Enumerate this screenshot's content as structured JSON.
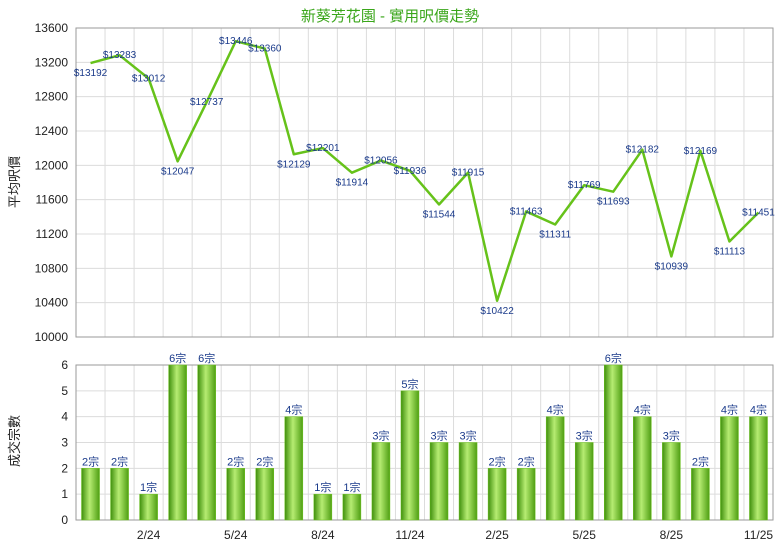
{
  "chart_data": [
    {
      "type": "line",
      "title": "新葵芳花園 - 實用呎價走勢",
      "ylabel": "平均呎價",
      "ylim": [
        10000,
        13600
      ],
      "yticks": [
        10000,
        10400,
        10800,
        11200,
        11600,
        12000,
        12400,
        12800,
        13200,
        13600
      ],
      "values": [
        13192,
        13283,
        13012,
        12047,
        12737,
        13446,
        13360,
        12129,
        12201,
        11914,
        12056,
        11936,
        11544,
        11915,
        10422,
        11463,
        11311,
        11769,
        11693,
        12182,
        10939,
        12169,
        11113,
        11451
      ],
      "labels": [
        "$13192",
        "$13283",
        "$13012",
        "$12047",
        "$12737",
        "$13446",
        "$13360",
        "$12129",
        "$12201",
        "$11914",
        "$12056",
        "$11936",
        "$11544",
        "$11915",
        "$10422",
        "$11463",
        "$11311",
        "$11769",
        "$11693",
        "$12182",
        "$10939",
        "$12169",
        "$11113",
        "$11451"
      ],
      "line_color": "#66c21a",
      "grid": true
    },
    {
      "type": "bar",
      "ylabel": "成交宗數",
      "ylim": [
        0,
        6
      ],
      "yticks": [
        0,
        1,
        2,
        3,
        4,
        5,
        6
      ],
      "values": [
        2,
        2,
        1,
        6,
        6,
        2,
        2,
        4,
        1,
        1,
        3,
        5,
        3,
        3,
        2,
        2,
        4,
        3,
        6,
        4,
        3,
        2,
        4,
        4
      ],
      "labels": [
        "2宗",
        "2宗",
        "1宗",
        "6宗",
        "6宗",
        "2宗",
        "2宗",
        "4宗",
        "1宗",
        "1宗",
        "3宗",
        "5宗",
        "3宗",
        "3宗",
        "2宗",
        "2宗",
        "4宗",
        "3宗",
        "6宗",
        "4宗",
        "3宗",
        "2宗",
        "4宗",
        "4宗"
      ],
      "x_tick_labels": [
        {
          "index": 2,
          "text": "2/24"
        },
        {
          "index": 5,
          "text": "5/24"
        },
        {
          "index": 8,
          "text": "8/24"
        },
        {
          "index": 11,
          "text": "11/24"
        },
        {
          "index": 14,
          "text": "2/25"
        },
        {
          "index": 17,
          "text": "5/25"
        },
        {
          "index": 20,
          "text": "8/25"
        },
        {
          "index": 23,
          "text": "11/25"
        }
      ],
      "bar_color": "#6cc21e",
      "grid": true
    }
  ]
}
